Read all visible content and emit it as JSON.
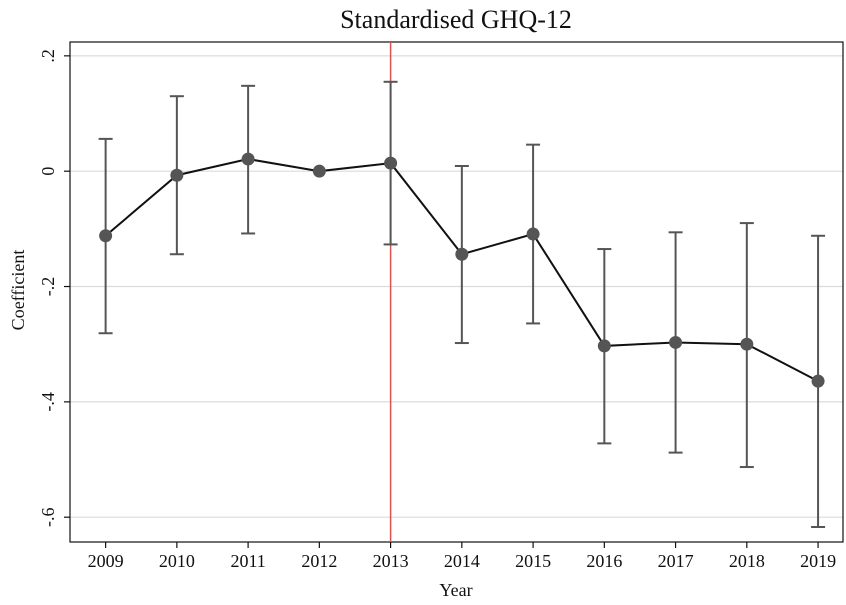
{
  "chart_data": {
    "type": "line",
    "title": "Standardised GHQ-12",
    "x_label": "Year",
    "y_label": "Coefficient",
    "x": [
      2009,
      2010,
      2011,
      2012,
      2013,
      2014,
      2015,
      2016,
      2017,
      2018,
      2019
    ],
    "series": [
      {
        "name": "Coefficient",
        "color": "#555555",
        "values": [
          -0.112,
          -0.007,
          0.021,
          0,
          0.014,
          -0.144,
          -0.109,
          -0.303,
          -0.297,
          -0.3,
          -0.364
        ],
        "ci_low": [
          -0.281,
          -0.144,
          -0.108,
          null,
          -0.127,
          -0.298,
          -0.264,
          -0.472,
          -0.488,
          -0.513,
          -0.617
        ],
        "ci_high": [
          0.056,
          0.13,
          0.148,
          null,
          0.155,
          0.009,
          0.046,
          -0.135,
          -0.106,
          -0.09,
          -0.112
        ]
      }
    ],
    "reference_line": {
      "x": 2013,
      "color": "#d9534f"
    },
    "xlim": [
      2008.5,
      2019.35
    ],
    "xticks": [
      2009,
      2010,
      2011,
      2012,
      2013,
      2014,
      2015,
      2016,
      2017,
      2018,
      2019
    ],
    "ylim": [
      -0.643,
      0.224
    ],
    "yticks": [
      {
        "value": 0.2,
        "label": ".2"
      },
      0,
      {
        "value": -0.2,
        "label": "-.2"
      },
      {
        "value": -0.4,
        "label": "-.4"
      },
      {
        "value": -0.6,
        "label": "-.6"
      }
    ],
    "grid": true
  }
}
